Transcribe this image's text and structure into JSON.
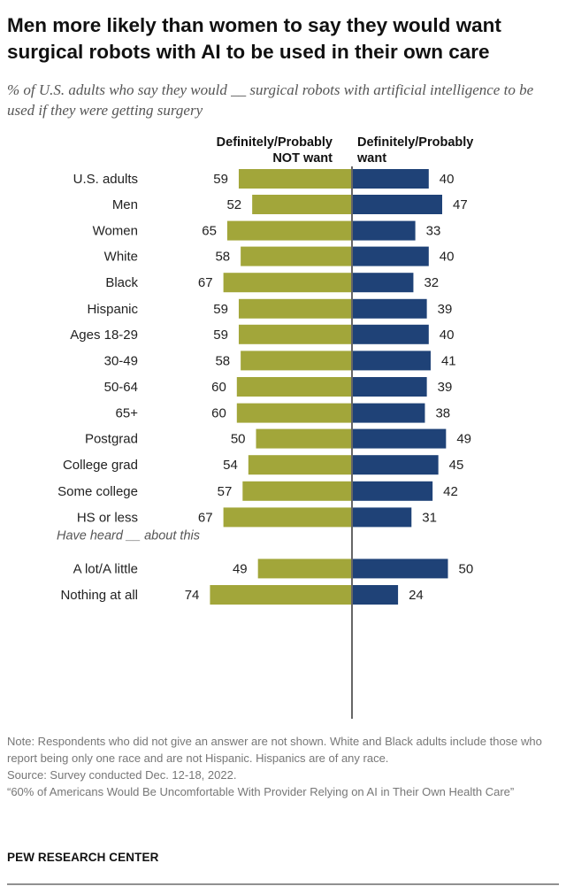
{
  "title": "Men more likely than women to say they would want surgical robots with AI to be used in their own care",
  "subtitle": "% of U.S. adults who say they would __ surgical robots with artificial intelligence to be used if they were getting surgery",
  "chart_data": {
    "type": "bar",
    "orientation": "diverging-horizontal",
    "series": [
      {
        "name": "Definitely/Probably NOT want",
        "color": "#a2a63a",
        "values": [
          59,
          52,
          65,
          58,
          67,
          59,
          59,
          58,
          60,
          60,
          50,
          54,
          57,
          67,
          49,
          74
        ]
      },
      {
        "name": "Definitely/Probably want",
        "color": "#1f4277",
        "values": [
          40,
          47,
          33,
          40,
          32,
          39,
          40,
          41,
          39,
          38,
          49,
          45,
          42,
          31,
          50,
          24
        ]
      }
    ],
    "categories": [
      "U.S. adults",
      "Men",
      "Women",
      "White",
      "Black",
      "Hispanic",
      "Ages 18-29",
      "30-49",
      "50-64",
      "65+",
      "Postgrad",
      "College grad",
      "Some college",
      "HS or less",
      "A lot/A little",
      "Nothing at all"
    ],
    "groups": [
      [
        0
      ],
      [
        1,
        2
      ],
      [
        3,
        4,
        5
      ],
      [
        6,
        7,
        8,
        9
      ],
      [
        10,
        11,
        12,
        13
      ],
      [
        14,
        15
      ]
    ],
    "group_notes": [
      {
        "before_group": 5,
        "text": "Have heard __ about this"
      }
    ],
    "column_headers": {
      "left_line1": "Definitely/Probably",
      "left_line2": "NOT want",
      "right_line1": "Definitely/Probably",
      "right_line2": "want"
    },
    "xlim": [
      0,
      100
    ]
  },
  "notes": {
    "note": "Note: Respondents who did not give an answer are not shown. White and Black adults include those who report being only one race and are not Hispanic. Hispanics are of any race.",
    "source": "Source: Survey conducted Dec. 12-18, 2022.",
    "report": "“60% of Americans Would Be Uncomfortable With Provider Relying on AI in Their Own Health Care”"
  },
  "brand": "PEW RESEARCH CENTER"
}
